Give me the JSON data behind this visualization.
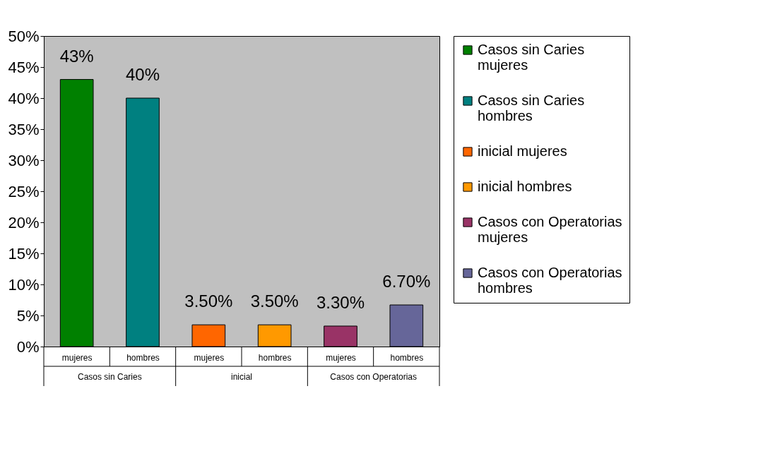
{
  "chart_data": {
    "type": "bar",
    "categories": [
      "mujeres",
      "hombres",
      "mujeres",
      "hombres",
      "mujeres",
      "hombres"
    ],
    "series": [
      {
        "name": "Casos sin Caries mujeres",
        "color": "#008000",
        "values": [
          43,
          null,
          null,
          null,
          null,
          null
        ],
        "value_labels": [
          "43%",
          null,
          null,
          null,
          null,
          null
        ]
      },
      {
        "name": "Casos sin Caries hombres",
        "color": "#008080",
        "values": [
          null,
          40,
          null,
          null,
          null,
          null
        ],
        "value_labels": [
          null,
          "40%",
          null,
          null,
          null,
          null
        ]
      },
      {
        "name": "inicial mujeres",
        "color": "#ff6600",
        "values": [
          null,
          null,
          3.5,
          null,
          null,
          null
        ],
        "value_labels": [
          null,
          null,
          "3.50%",
          null,
          null,
          null
        ]
      },
      {
        "name": "inicial hombres",
        "color": "#ff9900",
        "values": [
          null,
          null,
          null,
          3.5,
          null,
          null
        ],
        "value_labels": [
          null,
          null,
          null,
          "3.50%",
          null,
          null
        ]
      },
      {
        "name": "Casos con Operatorias mujeres",
        "color": "#993366",
        "values": [
          null,
          null,
          null,
          null,
          3.3,
          null
        ],
        "value_labels": [
          null,
          null,
          null,
          null,
          "3.30%",
          null
        ]
      },
      {
        "name": "Casos con Operatorias hombres",
        "color": "#666699",
        "values": [
          null,
          null,
          null,
          null,
          null,
          6.7
        ],
        "value_labels": [
          null,
          null,
          null,
          null,
          null,
          "6.70%"
        ]
      }
    ],
    "annotations": [
      "Casos sin Caries",
      "inicial",
      "Casos con Operatorias"
    ],
    "ylim": [
      0,
      50
    ],
    "yticks": [
      {
        "value": 0,
        "label": "0%"
      },
      {
        "value": 5,
        "label": "5%"
      },
      {
        "value": 10,
        "label": "10%"
      },
      {
        "value": 15,
        "label": "15%"
      },
      {
        "value": 20,
        "label": "20%"
      },
      {
        "value": 25,
        "label": "25%"
      },
      {
        "value": 30,
        "label": "30%"
      },
      {
        "value": 35,
        "label": "35%"
      },
      {
        "value": 40,
        "label": "40%"
      },
      {
        "value": 45,
        "label": "45%"
      },
      {
        "value": 50,
        "label": "50%"
      }
    ],
    "grid": false,
    "legend": "right"
  }
}
